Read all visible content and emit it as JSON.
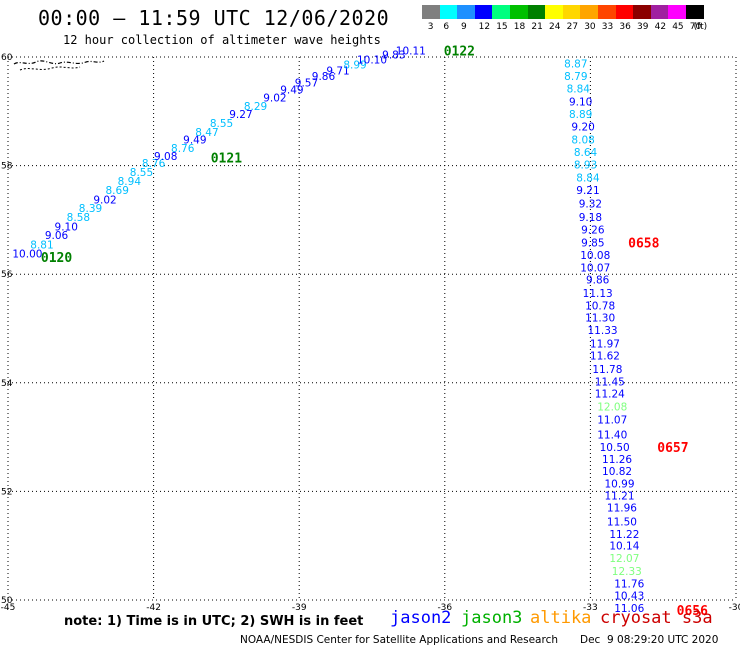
{
  "header": {
    "title": "00:00 – 11:59 UTC 12/06/2020",
    "subtitle": "12 hour collection of altimeter wave heights"
  },
  "legend": {
    "labels": [
      "3",
      "6",
      "9",
      "12",
      "15",
      "18",
      "21",
      "24",
      "27",
      "30",
      "33",
      "36",
      "39",
      "42",
      "45",
      "70"
    ],
    "unit": "(ft)",
    "colors": [
      "#7f7f7f",
      "#00ffff",
      "#1e90ff",
      "#0000ff",
      "#00ff7f",
      "#00c000",
      "#008000",
      "#ffff00",
      "#ffd700",
      "#ffa500",
      "#ff4500",
      "#ff0000",
      "#8b0000",
      "#a020a0",
      "#ff00ff",
      "#000000"
    ]
  },
  "chart_data": {
    "type": "scatter",
    "xlim": [
      -45,
      -30
    ],
    "ylim": [
      50,
      60
    ],
    "x_ticks": [
      -45,
      -42,
      -39,
      -36,
      -33,
      -30
    ],
    "y_ticks": [
      50,
      52,
      54,
      56,
      58,
      60
    ],
    "grid": true,
    "series": [
      {
        "name": "jason2",
        "points": [
          {
            "x": -44.6,
            "y": 56.38,
            "v": "10.00",
            "c": "#0000ff"
          },
          {
            "x": -44.3,
            "y": 56.55,
            "v": "8.81",
            "c": "#00bfff"
          },
          {
            "x": -44.0,
            "y": 56.72,
            "v": "9.06",
            "c": "#0000ff"
          },
          {
            "x": -43.8,
            "y": 56.88,
            "v": "9.10",
            "c": "#0000ff"
          },
          {
            "x": -43.55,
            "y": 57.05,
            "v": "8.58",
            "c": "#00bfff"
          },
          {
            "x": -43.3,
            "y": 57.22,
            "v": "8.39",
            "c": "#00bfff"
          },
          {
            "x": -43.0,
            "y": 57.38,
            "v": "9.02",
            "c": "#0000ff"
          },
          {
            "x": -42.75,
            "y": 57.55,
            "v": "8.69",
            "c": "#00bfff"
          },
          {
            "x": -42.5,
            "y": 57.72,
            "v": "8.94",
            "c": "#00bfff"
          },
          {
            "x": -42.25,
            "y": 57.88,
            "v": "8.55",
            "c": "#00bfff"
          },
          {
            "x": -42.0,
            "y": 58.05,
            "v": "8.76",
            "c": "#00bfff"
          },
          {
            "x": -41.75,
            "y": 58.18,
            "v": "9.08",
            "c": "#0000ff"
          },
          {
            "x": -41.4,
            "y": 58.32,
            "v": "8.76",
            "c": "#00bfff"
          },
          {
            "x": -41.15,
            "y": 58.48,
            "v": "9.49",
            "c": "#0000ff"
          },
          {
            "x": -40.9,
            "y": 58.62,
            "v": "8.47",
            "c": "#00bfff"
          },
          {
            "x": -40.6,
            "y": 58.78,
            "v": "8.55",
            "c": "#00bfff"
          },
          {
            "x": -40.2,
            "y": 58.95,
            "v": "9.27",
            "c": "#0000ff"
          },
          {
            "x": -39.9,
            "y": 59.1,
            "v": "8.29",
            "c": "#00bfff"
          },
          {
            "x": -39.5,
            "y": 59.25,
            "v": "9.02",
            "c": "#0000ff"
          },
          {
            "x": -39.15,
            "y": 59.4,
            "v": "9.49",
            "c": "#0000ff"
          },
          {
            "x": -38.85,
            "y": 59.53,
            "v": "9.57",
            "c": "#0000ff"
          },
          {
            "x": -38.5,
            "y": 59.65,
            "v": "9.86",
            "c": "#0000ff"
          },
          {
            "x": -38.2,
            "y": 59.75,
            "v": "9.71",
            "c": "#0000ff"
          },
          {
            "x": -37.85,
            "y": 59.86,
            "v": "8.99",
            "c": "#00bfff"
          },
          {
            "x": -37.5,
            "y": 59.95,
            "v": "10.10",
            "c": "#0000ff"
          },
          {
            "x": -37.05,
            "y": 60.05,
            "v": "9.83",
            "c": "#0000ff"
          },
          {
            "x": -36.7,
            "y": 60.12,
            "v": "10.11",
            "c": "#0000ff"
          },
          {
            "x": -33.3,
            "y": 59.88,
            "v": "8.87",
            "c": "#00bfff"
          },
          {
            "x": -33.3,
            "y": 59.65,
            "v": "8.79",
            "c": "#00bfff"
          },
          {
            "x": -33.25,
            "y": 59.42,
            "v": "8.84",
            "c": "#00bfff"
          },
          {
            "x": -33.2,
            "y": 59.18,
            "v": "9.10",
            "c": "#0000ff"
          },
          {
            "x": -33.2,
            "y": 58.95,
            "v": "8.89",
            "c": "#00bfff"
          },
          {
            "x": -33.15,
            "y": 58.72,
            "v": "9.20",
            "c": "#0000ff"
          },
          {
            "x": -33.15,
            "y": 58.48,
            "v": "8.08",
            "c": "#00bfff"
          },
          {
            "x": -33.1,
            "y": 58.25,
            "v": "8.64",
            "c": "#00bfff"
          },
          {
            "x": -33.1,
            "y": 58.02,
            "v": "8.93",
            "c": "#00bfff"
          },
          {
            "x": -33.05,
            "y": 57.78,
            "v": "8.84",
            "c": "#00bfff"
          },
          {
            "x": -33.05,
            "y": 57.55,
            "v": "9.21",
            "c": "#0000ff"
          },
          {
            "x": -33.0,
            "y": 57.3,
            "v": "9.32",
            "c": "#0000ff"
          },
          {
            "x": -33.0,
            "y": 57.05,
            "v": "9.18",
            "c": "#0000ff"
          },
          {
            "x": -32.95,
            "y": 56.82,
            "v": "9.26",
            "c": "#0000ff"
          },
          {
            "x": -32.95,
            "y": 56.58,
            "v": "9.85",
            "c": "#0000ff"
          },
          {
            "x": -32.9,
            "y": 56.35,
            "v": "10.08",
            "c": "#0000ff"
          },
          {
            "x": -32.9,
            "y": 56.12,
            "v": "10.07",
            "c": "#0000ff"
          },
          {
            "x": -32.85,
            "y": 55.9,
            "v": "9.86",
            "c": "#0000ff"
          },
          {
            "x": -32.85,
            "y": 55.65,
            "v": "11.13",
            "c": "#0000ff"
          },
          {
            "x": -32.8,
            "y": 55.42,
            "v": "10.78",
            "c": "#0000ff"
          },
          {
            "x": -32.8,
            "y": 55.2,
            "v": "11.30",
            "c": "#0000ff"
          },
          {
            "x": -32.75,
            "y": 54.97,
            "v": "11.33",
            "c": "#0000ff"
          },
          {
            "x": -32.7,
            "y": 54.72,
            "v": "11.97",
            "c": "#0000ff"
          },
          {
            "x": -32.7,
            "y": 54.5,
            "v": "11.62",
            "c": "#0000ff"
          },
          {
            "x": -32.65,
            "y": 54.25,
            "v": "11.78",
            "c": "#0000ff"
          },
          {
            "x": -32.6,
            "y": 54.02,
            "v": "11.45",
            "c": "#0000ff"
          },
          {
            "x": -32.6,
            "y": 53.8,
            "v": "11.24",
            "c": "#0000ff"
          },
          {
            "x": -32.55,
            "y": 53.32,
            "v": "11.07",
            "c": "#0000ff"
          },
          {
            "x": -32.55,
            "y": 53.05,
            "v": "11.40",
            "c": "#0000ff"
          },
          {
            "x": -32.5,
            "y": 52.82,
            "v": "10.50",
            "c": "#0000ff"
          },
          {
            "x": -32.45,
            "y": 52.6,
            "v": "11.26",
            "c": "#0000ff"
          },
          {
            "x": -32.45,
            "y": 52.38,
            "v": "10.82",
            "c": "#0000ff"
          },
          {
            "x": -32.4,
            "y": 52.15,
            "v": "10.99",
            "c": "#0000ff"
          },
          {
            "x": -32.4,
            "y": 51.92,
            "v": "11.21",
            "c": "#0000ff"
          },
          {
            "x": -32.35,
            "y": 51.7,
            "v": "11.96",
            "c": "#0000ff"
          },
          {
            "x": -32.35,
            "y": 51.45,
            "v": "11.50",
            "c": "#0000ff"
          },
          {
            "x": -32.3,
            "y": 51.22,
            "v": "11.22",
            "c": "#0000ff"
          },
          {
            "x": -32.3,
            "y": 51.0,
            "v": "10.14",
            "c": "#0000ff"
          },
          {
            "x": -32.2,
            "y": 50.3,
            "v": "11.76",
            "c": "#0000ff"
          },
          {
            "x": -32.2,
            "y": 50.08,
            "v": "10.43",
            "c": "#0000ff"
          },
          {
            "x": -32.2,
            "y": 49.85,
            "v": "11.06",
            "c": "#0000ff"
          }
        ]
      },
      {
        "name": "light-green",
        "points": [
          {
            "x": -32.55,
            "y": 53.56,
            "v": "12.08",
            "c": "#7fff7f"
          },
          {
            "x": -32.3,
            "y": 50.77,
            "v": "12.07",
            "c": "#7fff7f"
          },
          {
            "x": -32.25,
            "y": 50.53,
            "v": "12.33",
            "c": "#7fff7f"
          }
        ]
      }
    ],
    "pass_labels": [
      {
        "x": -44.0,
        "y": 56.32,
        "text": "0120",
        "c": "#008000"
      },
      {
        "x": -40.5,
        "y": 58.15,
        "text": "0121",
        "c": "#008000"
      },
      {
        "x": -35.7,
        "y": 60.12,
        "text": "0122",
        "c": "#008000"
      },
      {
        "x": -31.9,
        "y": 56.58,
        "text": "0658",
        "c": "#ff0000"
      },
      {
        "x": -31.3,
        "y": 52.82,
        "text": "0657",
        "c": "#ff0000"
      },
      {
        "x": -30.9,
        "y": 49.82,
        "text": "0656",
        "c": "#ff0000"
      }
    ]
  },
  "footer": {
    "note": "note: 1) Time is in UTC; 2) SWH is in feet",
    "satellites": [
      {
        "name": "jason2",
        "color": "#0000ff"
      },
      {
        "name": "jason3",
        "color": "#00b000"
      },
      {
        "name": "altika",
        "color": "#ff9900"
      },
      {
        "name": "cryosat s3a",
        "color": "#cc0000"
      }
    ],
    "credit": "NOAA/NESDIS Center for Satellite Applications and Research",
    "timestamp": "Dec  9 08:29:20 UTC 2020"
  }
}
